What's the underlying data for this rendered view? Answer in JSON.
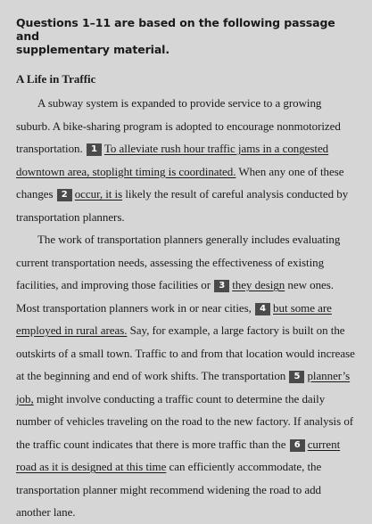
{
  "heading": {
    "line1": "Questions 1–11 are based on the following passage and",
    "line2": "supplementary material."
  },
  "passage": {
    "title": "A Life in Traffic",
    "p1": {
      "s1": "A subway system is expanded to provide service to a growing suburb. A bike-sharing program is adopted to encourage nonmotorized transportation.",
      "q1_num": "1",
      "q1_text": "To alleviate rush hour traffic jams in a congested downtown area, stoplight timing is coordinated.",
      "s2": "When any one of these changes",
      "q2_num": "2",
      "q2_text": "occur, it is",
      "s3": "likely the result of careful analysis conducted by transportation planners."
    },
    "p2": {
      "s1": "The work of transportation planners generally includes evaluating current transportation needs, assessing the effectiveness of existing facilities, and improving those facilities or",
      "q3_num": "3",
      "q3_text": "they design",
      "s2": "new ones. Most transportation planners work in or near cities,",
      "q4_num": "4",
      "q4_text": "but some are employed in rural areas.",
      "s3": "Say, for example, a large factory is built on the outskirts of a small town. Traffic to and from that location would increase at the beginning and end of work shifts. The transportation",
      "q5_num": "5",
      "q5_text": "planner’s job,",
      "s4": "might involve conducting a traffic count to determine the daily number of vehicles traveling on the road to the new factory. If analysis of the traffic count indicates that there is more traffic than the",
      "q6_num": "6",
      "q6_text": "current road as it is designed at this time",
      "s5": "can efficiently accommodate, the transportation planner might recommend widening the road to add another lane."
    }
  }
}
